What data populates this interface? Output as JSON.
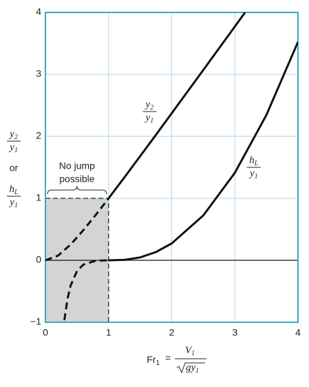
{
  "chart_data": {
    "type": "line",
    "x_label": {
      "lhs": "Fr",
      "lhs_sub": "1",
      "eq": "=",
      "num": "V",
      "num_sub": "1",
      "den": "gy",
      "den_sub": "1"
    },
    "y_label": {
      "top": {
        "num": "y",
        "num_sub": "2",
        "den": "y",
        "den_sub": "1"
      },
      "or": "or",
      "bottom": {
        "num": "h",
        "num_sub": "L",
        "den": "y",
        "den_sub": "1"
      }
    },
    "xlim": [
      0,
      4
    ],
    "ylim": [
      -1,
      4
    ],
    "xticks": [
      0,
      1,
      2,
      3,
      4
    ],
    "yticks": [
      {
        "value": -1,
        "label": "−1"
      },
      0,
      1,
      2,
      3,
      4
    ],
    "grid": true,
    "grid_color": "#a9d8e6",
    "frame_color": "#3aa8c8",
    "series": [
      {
        "style": "solid",
        "color": "#111",
        "x": [
          1,
          1.25,
          1.5,
          1.75,
          2,
          2.5,
          3,
          3.162
        ],
        "values": [
          1,
          1.337,
          1.679,
          2.025,
          2.372,
          3.071,
          3.772,
          4
        ]
      },
      {
        "style": "dashed",
        "color": "#111",
        "x": [
          0,
          0.2,
          0.4,
          0.6,
          0.8,
          1
        ],
        "values": [
          0,
          0.074,
          0.255,
          0.485,
          0.737,
          1
        ]
      },
      {
        "style": "solid",
        "color": "#111",
        "x": [
          1,
          1.25,
          1.5,
          1.75,
          2,
          2.5,
          3,
          3.5,
          4
        ],
        "values": [
          0,
          0.007,
          0.047,
          0.133,
          0.272,
          0.723,
          1.412,
          2.344,
          3.523
        ]
      },
      {
        "style": "dashed",
        "color": "#111",
        "x": [
          0.3,
          0.35,
          0.4,
          0.5,
          0.6,
          0.8,
          1
        ],
        "values": [
          -0.966,
          -0.62,
          -0.405,
          -0.174,
          -0.07,
          -0.006,
          0
        ]
      }
    ],
    "shaded_region": {
      "x": [
        0,
        1
      ],
      "y": [
        -1,
        1
      ],
      "color": "#d3d4d6"
    },
    "annotations": [
      {
        "num": "y",
        "num_sub": "2",
        "den": "y",
        "den_sub": "1",
        "x": 1.65,
        "y": 2.4
      },
      {
        "num": "h",
        "num_sub": "L",
        "den": "y",
        "den_sub": "1",
        "x": 3.3,
        "y": 1.5
      }
    ],
    "region_note": [
      "No jump",
      "possible"
    ]
  }
}
